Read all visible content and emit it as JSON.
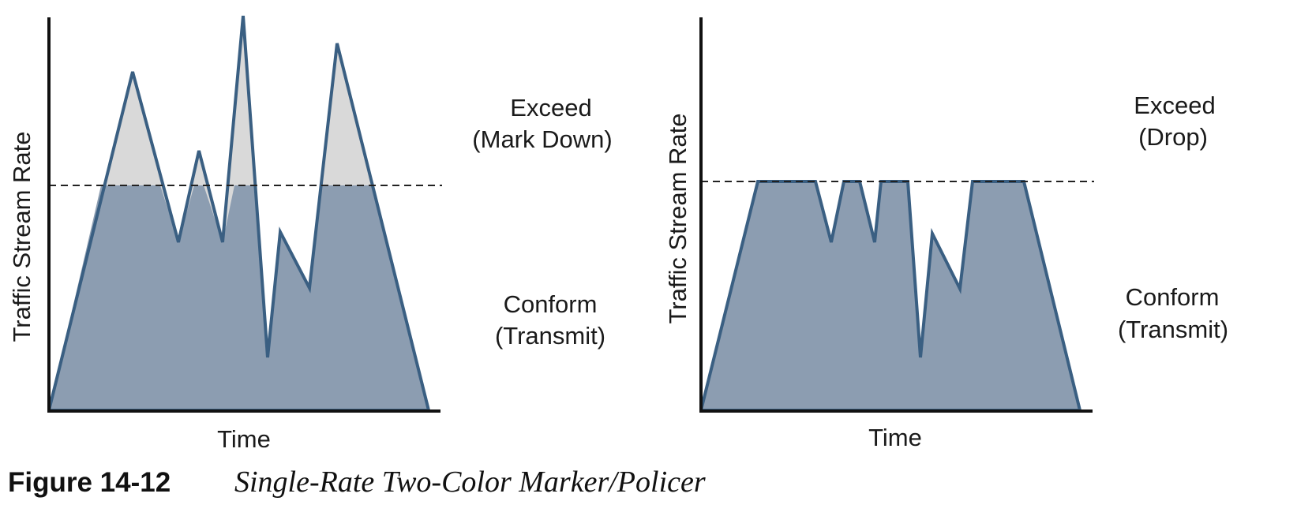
{
  "colors": {
    "conform_fill": "#8c9db1",
    "exceed_fill": "#d9d9d9",
    "outline": "#3a5f82",
    "axis": "#111111",
    "threshold": "#222222"
  },
  "panels": [
    {
      "ylabel": "Traffic Stream Rate",
      "xlabel": "Time",
      "exceed_label": [
        "Exceed",
        "(Mark Down)"
      ],
      "conform_label": [
        "Conform",
        "(Transmit)"
      ]
    },
    {
      "ylabel": "Traffic Stream Rate",
      "xlabel": "Time",
      "exceed_label": [
        "Exceed",
        "(Drop)"
      ],
      "conform_label": [
        "Conform",
        "(Transmit)"
      ]
    }
  ],
  "caption": {
    "number": "Figure 14-12",
    "title": "Single-Rate Two-Color Marker/Policer"
  }
}
